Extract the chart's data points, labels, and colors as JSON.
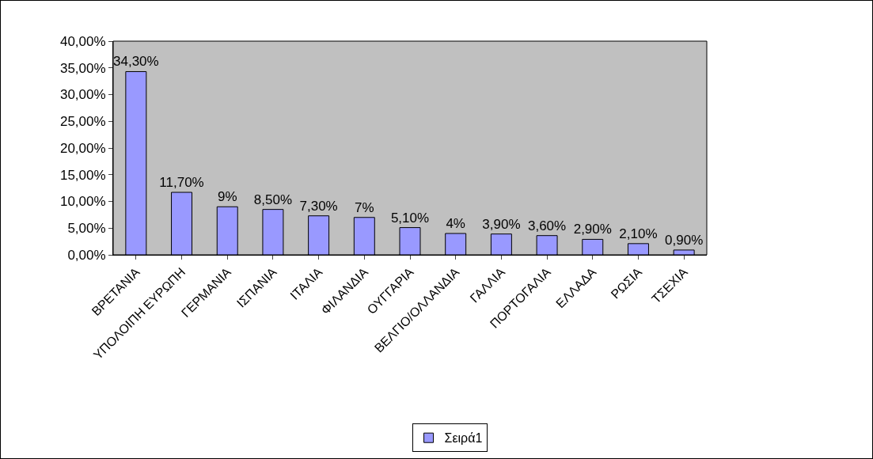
{
  "chart_data": {
    "type": "bar",
    "categories": [
      "ΒΡΕΤΑΝΙΑ",
      "ΥΠΟΛΟΙΠΗ ΕΥΡΩΠΗ",
      "ΓΕΡΜΑΝΙΑ",
      "ΙΣΠΑΝΙΑ",
      "ΙΤΑΛΙΑ",
      "ΦΙΛΑΝΔΙΑ",
      "ΟΥΓΓΑΡΙΑ",
      "ΒΕΛΓΙΟ/ΟΛΛΑΝΔΙΑ",
      "ΓΑΛΛΙΑ",
      "ΠΟΡΤΟΓΑΛΙΑ",
      "ΕΛΛΑΔΑ",
      "ΡΩΣΙΑ",
      "ΤΣΕΧΙΑ"
    ],
    "series": [
      {
        "name": "Σειρά1",
        "color": "#9999ff",
        "values": [
          34.3,
          11.7,
          9,
          8.5,
          7.3,
          7,
          5.1,
          4,
          3.9,
          3.6,
          2.9,
          2.1,
          0.9
        ],
        "value_labels": [
          "34,30%",
          "11,70%",
          "9%",
          "8,50%",
          "7,30%",
          "7%",
          "5,10%",
          "4%",
          "3,90%",
          "3,60%",
          "2,90%",
          "2,10%",
          "0,90%"
        ]
      }
    ],
    "ylim": [
      0,
      40
    ],
    "yticks": [
      {
        "value": 0,
        "label": "0,00%"
      },
      {
        "value": 5,
        "label": "5,00%"
      },
      {
        "value": 10,
        "label": "10,00%"
      },
      {
        "value": 15,
        "label": "15,00%"
      },
      {
        "value": 20,
        "label": "20,00%"
      },
      {
        "value": 25,
        "label": "25,00%"
      },
      {
        "value": 30,
        "label": "30,00%"
      },
      {
        "value": 35,
        "label": "35,00%"
      },
      {
        "value": 40,
        "label": "40,00%"
      }
    ],
    "grid": false,
    "legend": "bottom"
  }
}
